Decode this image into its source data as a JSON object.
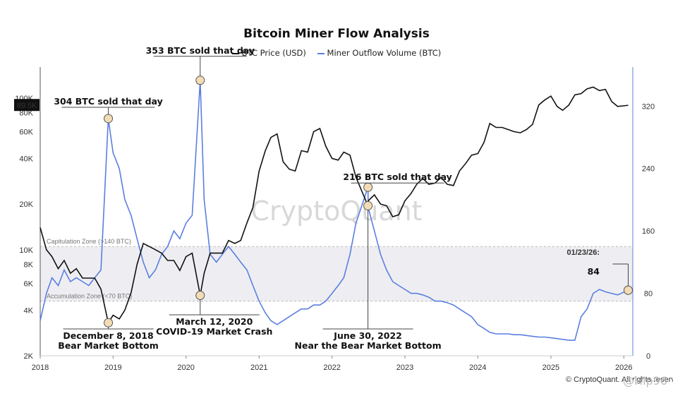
{
  "chart_data": {
    "type": "line",
    "title": "Bitcoin Miner Flow Analysis",
    "series": [
      {
        "name": "BTC Price (USD)",
        "color": "#111111",
        "axis": "left",
        "x": [
          "2018-01-01",
          "2018-02-01",
          "2018-03-01",
          "2018-04-01",
          "2018-05-01",
          "2018-06-01",
          "2018-07-01",
          "2018-08-01",
          "2018-09-01",
          "2018-10-01",
          "2018-11-01",
          "2018-12-08",
          "2019-01-01",
          "2019-02-01",
          "2019-03-01",
          "2019-04-01",
          "2019-05-01",
          "2019-06-01",
          "2019-07-01",
          "2019-08-01",
          "2019-09-01",
          "2019-10-01",
          "2019-11-01",
          "2019-12-01",
          "2020-01-01",
          "2020-02-01",
          "2020-03-12",
          "2020-04-01",
          "2020-05-01",
          "2020-06-01",
          "2020-07-01",
          "2020-08-01",
          "2020-09-01",
          "2020-10-01",
          "2020-11-01",
          "2020-12-01",
          "2021-01-01",
          "2021-02-01",
          "2021-03-01",
          "2021-04-01",
          "2021-05-01",
          "2021-06-01",
          "2021-07-01",
          "2021-08-01",
          "2021-09-01",
          "2021-10-01",
          "2021-11-01",
          "2021-12-01",
          "2022-01-01",
          "2022-02-01",
          "2022-03-01",
          "2022-04-01",
          "2022-05-01",
          "2022-06-30",
          "2022-07-01",
          "2022-08-01",
          "2022-09-01",
          "2022-10-01",
          "2022-11-01",
          "2022-12-01",
          "2023-01-01",
          "2023-02-01",
          "2023-03-01",
          "2023-04-01",
          "2023-05-01",
          "2023-06-01",
          "2023-07-01",
          "2023-08-01",
          "2023-09-01",
          "2023-10-01",
          "2023-11-01",
          "2023-12-01",
          "2024-01-01",
          "2024-02-01",
          "2024-03-01",
          "2024-04-01",
          "2024-05-01",
          "2024-06-01",
          "2024-07-01",
          "2024-08-01",
          "2024-09-01",
          "2024-10-01",
          "2024-11-01",
          "2024-12-01",
          "2025-01-01",
          "2025-02-01",
          "2025-03-01",
          "2025-04-01",
          "2025-05-01",
          "2025-06-01",
          "2025-07-01",
          "2025-08-01",
          "2025-09-01",
          "2025-10-01",
          "2025-11-01",
          "2025-12-01",
          "2026-01-23"
        ],
        "y": [
          14000,
          10000,
          9000,
          7500,
          8500,
          7000,
          7500,
          6500,
          6500,
          6500,
          5500,
          3300,
          3700,
          3500,
          4000,
          5200,
          8000,
          11000,
          10500,
          10000,
          9500,
          8500,
          8500,
          7300,
          9000,
          9500,
          5000,
          7000,
          9500,
          9500,
          9500,
          11500,
          11000,
          11500,
          15000,
          19000,
          33000,
          45000,
          55000,
          58000,
          38000,
          34000,
          33000,
          45000,
          44000,
          60000,
          63000,
          48000,
          40000,
          39000,
          44000,
          42000,
          30000,
          19500,
          21000,
          23000,
          20000,
          19500,
          16500,
          17000,
          21000,
          23500,
          27000,
          29500,
          27000,
          27500,
          30000,
          27000,
          26500,
          33000,
          37000,
          42000,
          43000,
          51000,
          68000,
          64000,
          64000,
          62000,
          60000,
          59000,
          62000,
          67000,
          90000,
          97000,
          103000,
          88000,
          83000,
          90000,
          105000,
          107000,
          115000,
          118000,
          112000,
          114000,
          95000,
          88000,
          89500
        ]
      },
      {
        "name": "Miner Outflow Volume (BTC)",
        "color": "#5b7fe0",
        "axis": "right",
        "x": [
          "2018-01-01",
          "2018-02-01",
          "2018-03-01",
          "2018-04-01",
          "2018-05-01",
          "2018-06-01",
          "2018-07-01",
          "2018-08-01",
          "2018-09-01",
          "2018-10-01",
          "2018-11-01",
          "2018-12-08",
          "2019-01-01",
          "2019-02-01",
          "2019-03-01",
          "2019-04-01",
          "2019-05-01",
          "2019-06-01",
          "2019-07-01",
          "2019-08-01",
          "2019-09-01",
          "2019-10-01",
          "2019-11-01",
          "2019-12-01",
          "2020-01-01",
          "2020-02-01",
          "2020-03-12",
          "2020-04-01",
          "2020-05-01",
          "2020-06-01",
          "2020-07-01",
          "2020-08-01",
          "2020-09-01",
          "2020-10-01",
          "2020-11-01",
          "2020-12-01",
          "2021-01-01",
          "2021-02-01",
          "2021-03-01",
          "2021-04-01",
          "2021-05-01",
          "2021-06-01",
          "2021-07-01",
          "2021-08-01",
          "2021-09-01",
          "2021-10-01",
          "2021-11-01",
          "2021-12-01",
          "2022-01-01",
          "2022-02-01",
          "2022-03-01",
          "2022-04-01",
          "2022-05-01",
          "2022-06-30",
          "2022-07-01",
          "2022-08-01",
          "2022-09-01",
          "2022-10-01",
          "2022-11-01",
          "2022-12-01",
          "2023-01-01",
          "2023-02-01",
          "2023-03-01",
          "2023-04-01",
          "2023-05-01",
          "2023-06-01",
          "2023-07-01",
          "2023-08-01",
          "2023-09-01",
          "2023-10-01",
          "2023-11-01",
          "2023-12-01",
          "2024-01-01",
          "2024-02-01",
          "2024-03-01",
          "2024-04-01",
          "2024-05-01",
          "2024-06-01",
          "2024-07-01",
          "2024-08-01",
          "2024-09-01",
          "2024-10-01",
          "2024-11-01",
          "2024-12-01",
          "2025-01-01",
          "2025-02-01",
          "2025-03-01",
          "2025-04-01",
          "2025-05-01",
          "2025-06-01",
          "2025-07-01",
          "2025-08-01",
          "2025-09-01",
          "2025-10-01",
          "2025-11-01",
          "2025-12-01",
          "2026-01-23"
        ],
        "y": [
          45,
          80,
          100,
          90,
          110,
          95,
          100,
          95,
          90,
          100,
          110,
          304,
          260,
          240,
          200,
          180,
          150,
          120,
          100,
          110,
          130,
          140,
          160,
          150,
          170,
          180,
          353,
          200,
          130,
          120,
          130,
          140,
          130,
          120,
          110,
          90,
          70,
          55,
          45,
          40,
          45,
          50,
          55,
          60,
          60,
          65,
          65,
          70,
          80,
          90,
          100,
          130,
          170,
          216,
          190,
          160,
          130,
          110,
          95,
          90,
          85,
          80,
          80,
          78,
          75,
          70,
          70,
          68,
          65,
          60,
          55,
          50,
          40,
          35,
          30,
          28,
          28,
          28,
          27,
          27,
          26,
          25,
          24,
          24,
          23,
          22,
          21,
          20,
          20,
          50,
          60,
          80,
          85,
          82,
          80,
          78,
          84
        ]
      }
    ],
    "y_left": {
      "ticks": [
        "2K",
        "4K",
        "6K",
        "8K",
        "10K",
        "20K",
        "40K",
        "60K",
        "80K",
        "100K"
      ],
      "values": [
        2000,
        4000,
        6000,
        8000,
        10000,
        20000,
        40000,
        60000,
        80000,
        100000
      ],
      "scale": "log",
      "range": [
        2000,
        160000
      ]
    },
    "y_right": {
      "ticks": [
        "0",
        "80",
        "160",
        "240",
        "320"
      ],
      "values": [
        0,
        80,
        160,
        240,
        320
      ],
      "range": [
        0,
        370
      ]
    },
    "x_ticks": [
      "2018",
      "2019",
      "2020",
      "2021",
      "2022",
      "2023",
      "2024",
      "2025",
      "2026"
    ],
    "x_range": [
      "2018-01-01",
      "2026-02-15"
    ],
    "price_label": "89.5K",
    "zones": [
      {
        "label": "Capitulation Zone (>140 BTC)",
        "value": 140
      },
      {
        "label": "Accumulation Zone (<70 BTC)",
        "value": 70
      }
    ],
    "annotations": [
      {
        "text": [
          "304 BTC sold that day"
        ],
        "date": "2018-12-08",
        "series": "outflow",
        "value": 304
      },
      {
        "text": [
          "353 BTC sold that day"
        ],
        "date": "2020-03-12",
        "series": "outflow",
        "value": 353
      },
      {
        "text": [
          "216 BTC sold that day"
        ],
        "date": "2022-06-30",
        "series": "outflow",
        "value": 216
      },
      {
        "text": [
          "December 8, 2018",
          "Bear Market Bottom"
        ],
        "date": "2018-12-08",
        "series": "price",
        "value": 3300
      },
      {
        "text": [
          "March 12, 2020",
          "COVID-19 Market Crash"
        ],
        "date": "2020-03-12",
        "series": "price",
        "value": 5000
      },
      {
        "text": [
          "June 30, 2022",
          "Near the Bear Market Bottom"
        ],
        "date": "2022-06-30",
        "series": "price",
        "value": 19500
      }
    ],
    "callout": {
      "date_label": "01/23/26:",
      "value": "84"
    },
    "watermark": "CryptoQuant",
    "credit": "© CryptoQuant. All rights reserved.",
    "author": "@Hip96",
    "grid": false,
    "legend": "top-center"
  }
}
